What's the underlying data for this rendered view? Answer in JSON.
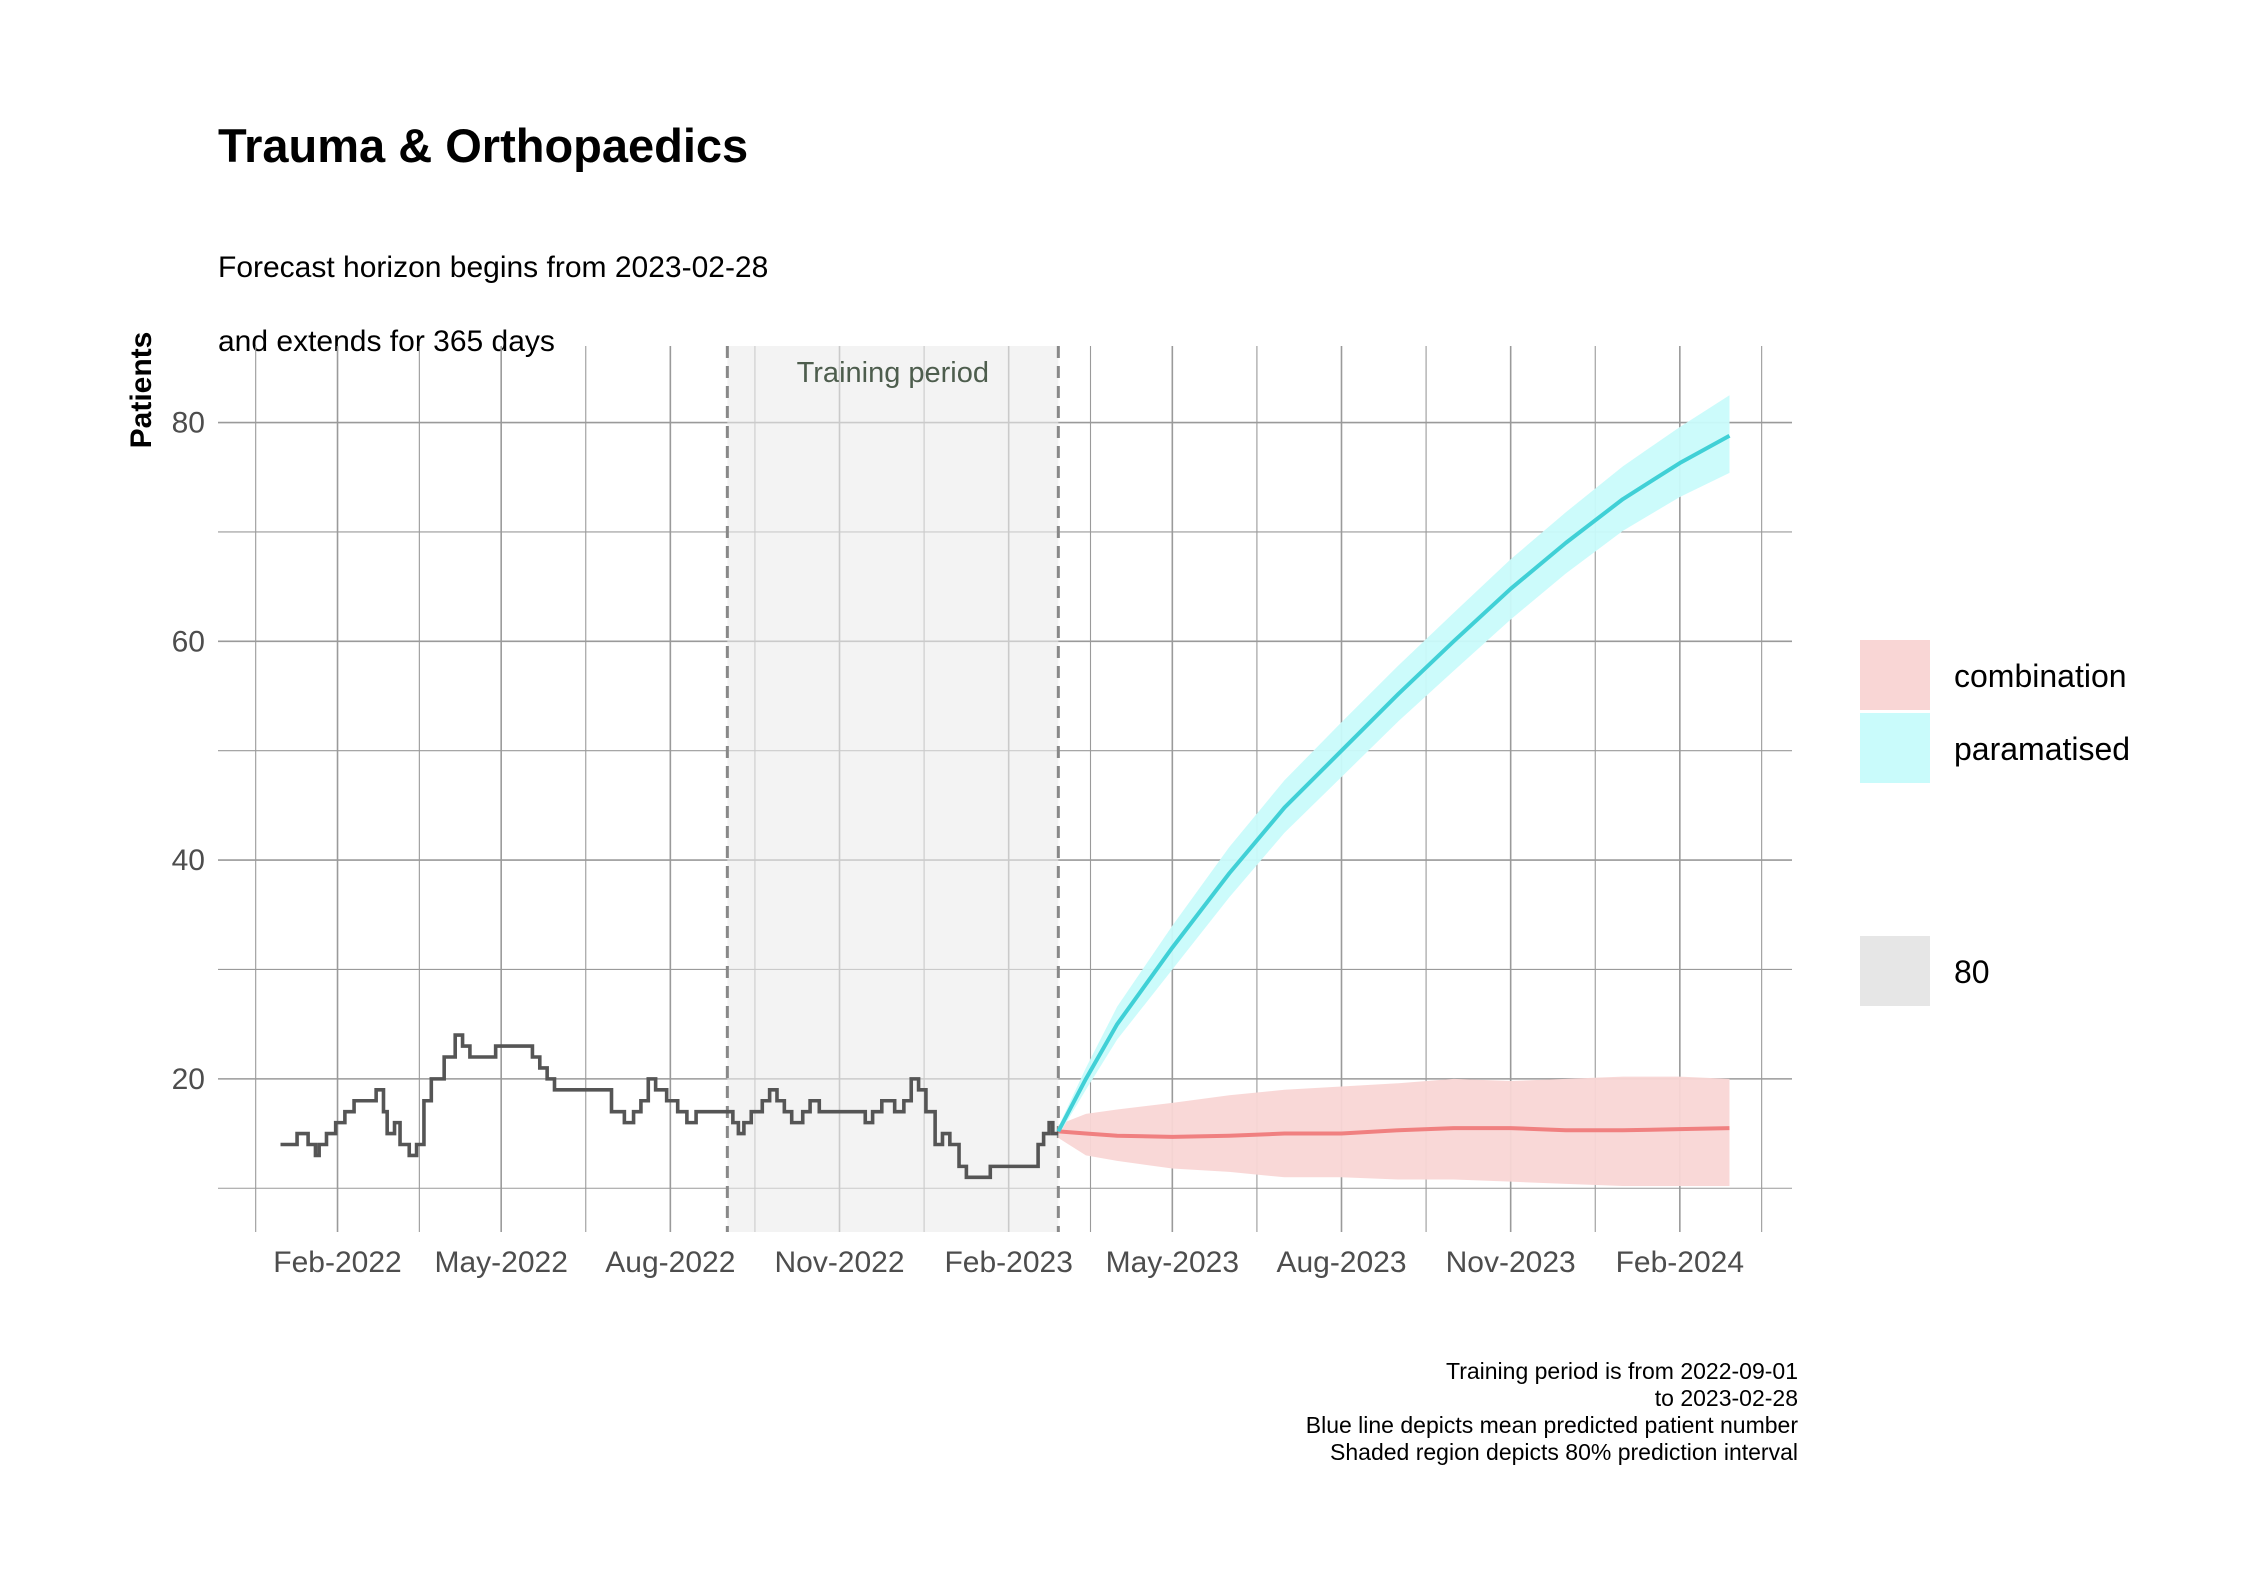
{
  "title": "Trauma & Orthopaedics",
  "subtitle_lines": [
    "Forecast horizon begins from 2023-02-28",
    "and extends for 365 days"
  ],
  "caption_lines": [
    "Training period is from 2022-09-01",
    "to 2023-02-28",
    "Blue line depicts mean predicted patient number",
    "Shaded region depicts 80% prediction interval"
  ],
  "chart_data": {
    "type": "line",
    "ylabel": "Patients",
    "xlabel": "",
    "ylim": [
      6,
      87
    ],
    "xlim": [
      "2021-11-28",
      "2024-04-02"
    ],
    "y_ticks": [
      20,
      40,
      60,
      80
    ],
    "x_ticks": [
      {
        "date": "2022-02-01",
        "label": "Feb-2022"
      },
      {
        "date": "2022-05-01",
        "label": "May-2022"
      },
      {
        "date": "2022-08-01",
        "label": "Aug-2022"
      },
      {
        "date": "2022-11-01",
        "label": "Nov-2022"
      },
      {
        "date": "2023-02-01",
        "label": "Feb-2023"
      },
      {
        "date": "2023-05-01",
        "label": "May-2023"
      },
      {
        "date": "2023-08-01",
        "label": "Aug-2023"
      },
      {
        "date": "2023-11-01",
        "label": "Nov-2023"
      },
      {
        "date": "2024-02-01",
        "label": "Feb-2024"
      }
    ],
    "grid": true,
    "training_period": {
      "label": "Training period",
      "start": "2022-09-01",
      "end": "2023-02-28"
    },
    "observed": {
      "color": "#555555",
      "points": [
        [
          "2022-01-01",
          14
        ],
        [
          "2022-01-10",
          15
        ],
        [
          "2022-01-16",
          14
        ],
        [
          "2022-01-20",
          13
        ],
        [
          "2022-01-22",
          14
        ],
        [
          "2022-01-26",
          15
        ],
        [
          "2022-01-31",
          16
        ],
        [
          "2022-02-05",
          17
        ],
        [
          "2022-02-10",
          18
        ],
        [
          "2022-02-16",
          18
        ],
        [
          "2022-02-22",
          19
        ],
        [
          "2022-02-26",
          17
        ],
        [
          "2022-02-28",
          15
        ],
        [
          "2022-03-04",
          16
        ],
        [
          "2022-03-07",
          14
        ],
        [
          "2022-03-12",
          13
        ],
        [
          "2022-03-16",
          14
        ],
        [
          "2022-03-20",
          18
        ],
        [
          "2022-03-24",
          20
        ],
        [
          "2022-03-31",
          22
        ],
        [
          "2022-04-06",
          24
        ],
        [
          "2022-04-10",
          23
        ],
        [
          "2022-04-14",
          22
        ],
        [
          "2022-04-28",
          23
        ],
        [
          "2022-05-10",
          23
        ],
        [
          "2022-05-18",
          22
        ],
        [
          "2022-05-22",
          21
        ],
        [
          "2022-05-26",
          20
        ],
        [
          "2022-05-30",
          19
        ],
        [
          "2022-06-30",
          17
        ],
        [
          "2022-07-07",
          16
        ],
        [
          "2022-07-12",
          17
        ],
        [
          "2022-07-16",
          18
        ],
        [
          "2022-07-20",
          20
        ],
        [
          "2022-07-24",
          19
        ],
        [
          "2022-07-30",
          18
        ],
        [
          "2022-08-05",
          17
        ],
        [
          "2022-08-10",
          16
        ],
        [
          "2022-08-15",
          17
        ],
        [
          "2022-08-25",
          17
        ],
        [
          "2022-09-04",
          16
        ],
        [
          "2022-09-07",
          15
        ],
        [
          "2022-09-10",
          16
        ],
        [
          "2022-09-14",
          17
        ],
        [
          "2022-09-20",
          18
        ],
        [
          "2022-09-24",
          19
        ],
        [
          "2022-09-28",
          18
        ],
        [
          "2022-10-02",
          17
        ],
        [
          "2022-10-06",
          16
        ],
        [
          "2022-10-12",
          17
        ],
        [
          "2022-10-16",
          18
        ],
        [
          "2022-10-21",
          17
        ],
        [
          "2022-11-15",
          16
        ],
        [
          "2022-11-19",
          17
        ],
        [
          "2022-11-24",
          18
        ],
        [
          "2022-12-01",
          17
        ],
        [
          "2022-12-06",
          18
        ],
        [
          "2022-12-10",
          20
        ],
        [
          "2022-12-14",
          19
        ],
        [
          "2022-12-18",
          17
        ],
        [
          "2022-12-23",
          14
        ],
        [
          "2022-12-27",
          15
        ],
        [
          "2022-12-31",
          14
        ],
        [
          "2023-01-05",
          12
        ],
        [
          "2023-01-09",
          11
        ],
        [
          "2023-01-17",
          11
        ],
        [
          "2023-01-22",
          12
        ],
        [
          "2023-02-15",
          12
        ],
        [
          "2023-02-17",
          14
        ],
        [
          "2023-02-20",
          15
        ],
        [
          "2023-02-23",
          16
        ],
        [
          "2023-02-25",
          15
        ],
        [
          "2023-02-28",
          15
        ]
      ]
    },
    "series": [
      {
        "name": "combination",
        "color": "#f08080",
        "fill": "#f9d6d5",
        "points": [
          {
            "x": "2023-02-28",
            "y": 15.2,
            "lo": 14.6,
            "hi": 15.8
          },
          {
            "x": "2023-03-15",
            "y": 15.0,
            "lo": 13.0,
            "hi": 16.8
          },
          {
            "x": "2023-04-01",
            "y": 14.8,
            "lo": 12.5,
            "hi": 17.2
          },
          {
            "x": "2023-05-01",
            "y": 14.7,
            "lo": 11.8,
            "hi": 17.8
          },
          {
            "x": "2023-06-01",
            "y": 14.8,
            "lo": 11.5,
            "hi": 18.5
          },
          {
            "x": "2023-07-01",
            "y": 15.0,
            "lo": 11.0,
            "hi": 19.0
          },
          {
            "x": "2023-08-01",
            "y": 15.0,
            "lo": 11.0,
            "hi": 19.3
          },
          {
            "x": "2023-09-01",
            "y": 15.3,
            "lo": 10.8,
            "hi": 19.6
          },
          {
            "x": "2023-10-01",
            "y": 15.5,
            "lo": 10.8,
            "hi": 20.0
          },
          {
            "x": "2023-11-01",
            "y": 15.5,
            "lo": 10.6,
            "hi": 19.8
          },
          {
            "x": "2023-12-01",
            "y": 15.3,
            "lo": 10.4,
            "hi": 20.0
          },
          {
            "x": "2024-01-01",
            "y": 15.3,
            "lo": 10.2,
            "hi": 20.2
          },
          {
            "x": "2024-02-01",
            "y": 15.4,
            "lo": 10.2,
            "hi": 20.2
          },
          {
            "x": "2024-02-28",
            "y": 15.5,
            "lo": 10.2,
            "hi": 20.0
          }
        ]
      },
      {
        "name": "paramatised",
        "color": "#40d0d6",
        "fill": "#c9fbfb",
        "points": [
          {
            "x": "2023-02-28",
            "y": 15.2,
            "lo": 14.8,
            "hi": 15.6
          },
          {
            "x": "2023-03-15",
            "y": 20.0,
            "lo": 19.0,
            "hi": 21.0
          },
          {
            "x": "2023-04-01",
            "y": 25.0,
            "lo": 23.6,
            "hi": 26.6
          },
          {
            "x": "2023-05-01",
            "y": 32.0,
            "lo": 30.0,
            "hi": 34.0
          },
          {
            "x": "2023-06-01",
            "y": 38.8,
            "lo": 36.6,
            "hi": 41.2
          },
          {
            "x": "2023-07-01",
            "y": 44.8,
            "lo": 42.5,
            "hi": 47.3
          },
          {
            "x": "2023-08-01",
            "y": 50.0,
            "lo": 47.6,
            "hi": 52.6
          },
          {
            "x": "2023-09-01",
            "y": 55.2,
            "lo": 52.7,
            "hi": 57.8
          },
          {
            "x": "2023-10-01",
            "y": 60.0,
            "lo": 57.3,
            "hi": 62.6
          },
          {
            "x": "2023-11-01",
            "y": 64.8,
            "lo": 62.0,
            "hi": 67.5
          },
          {
            "x": "2023-12-01",
            "y": 69.0,
            "lo": 66.2,
            "hi": 71.8
          },
          {
            "x": "2024-01-01",
            "y": 73.0,
            "lo": 70.1,
            "hi": 76.0
          },
          {
            "x": "2024-02-01",
            "y": 76.3,
            "lo": 73.2,
            "hi": 79.6
          },
          {
            "x": "2024-02-28",
            "y": 78.8,
            "lo": 75.4,
            "hi": 82.5
          }
        ]
      }
    ],
    "legend": {
      "placement": "right",
      "items": [
        {
          "label": "combination",
          "fill": "#f9d6d5"
        },
        {
          "label": "paramatised",
          "fill": "#c9fbfb"
        }
      ],
      "interval_item": {
        "label": "80",
        "fill": "#e6e6e6"
      }
    }
  }
}
